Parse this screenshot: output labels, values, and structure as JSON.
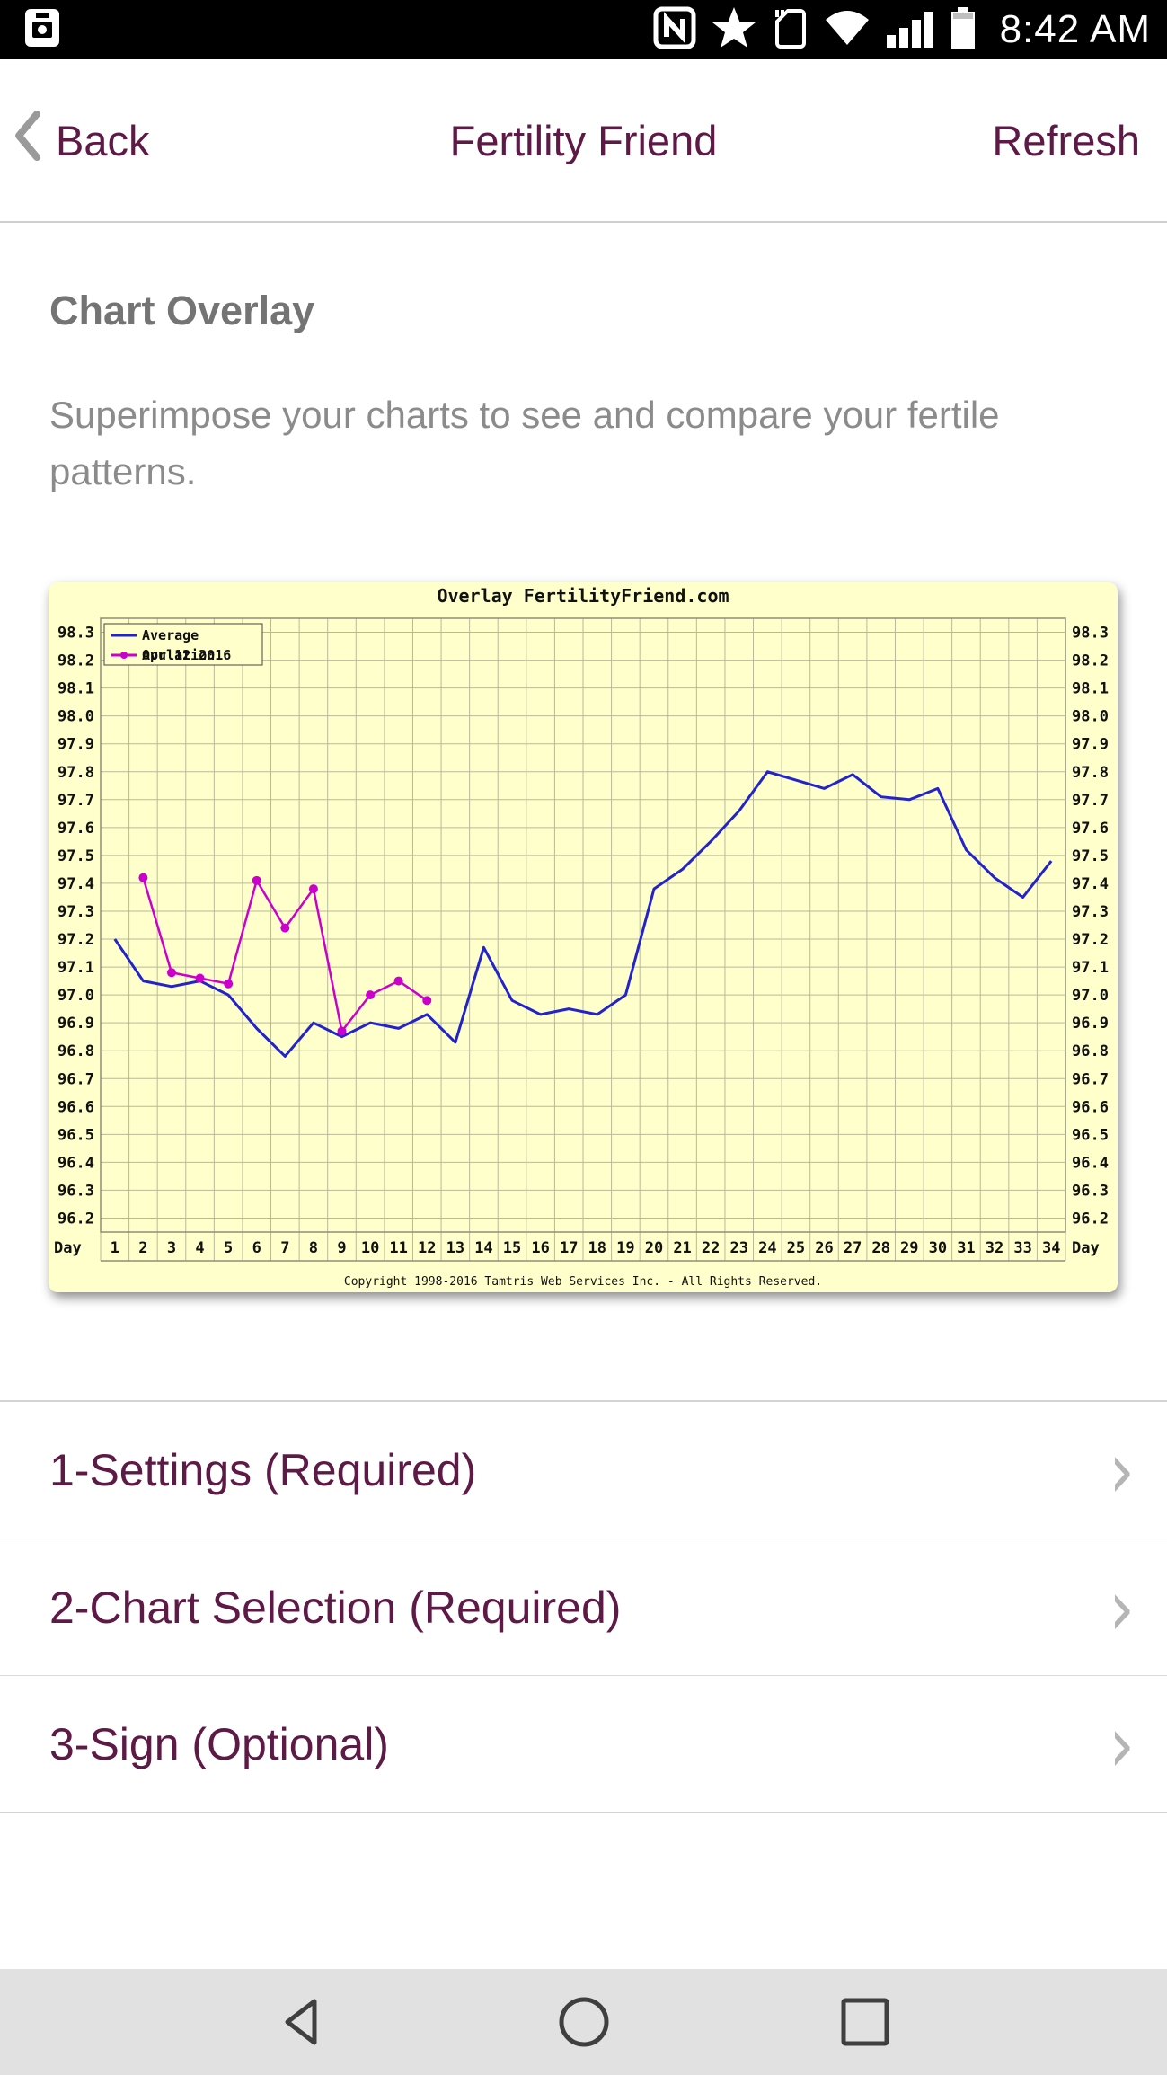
{
  "status_bar": {
    "time": "8:42 AM",
    "icons": [
      "screenshot-icon",
      "nfc-icon",
      "star-icon",
      "sim-card-icon",
      "wifi-icon",
      "signal-icon",
      "battery-icon"
    ]
  },
  "nav": {
    "back_label": "Back",
    "title": "Fertility Friend",
    "refresh_label": "Refresh"
  },
  "page": {
    "heading": "Chart Overlay",
    "description": "Superimpose your charts to see and compare your fertile patterns."
  },
  "chart_data": {
    "type": "line",
    "title": "Overlay FertilityFriend.com",
    "x_label": "Day",
    "background": "#ffffcc",
    "grid_color": "#b9b99a",
    "frame_color": "#8e8e79",
    "legend_position": "top-left",
    "ylim": [
      96.15,
      98.35
    ],
    "y_ticks": [
      "98.3",
      "98.2",
      "98.1",
      "98.0",
      "97.9",
      "97.8",
      "97.7",
      "97.6",
      "97.5",
      "97.4",
      "97.3",
      "97.2",
      "97.1",
      "97.0",
      "96.9",
      "96.8",
      "96.7",
      "96.6",
      "96.5",
      "96.4",
      "96.3",
      "96.2"
    ],
    "x": [
      1,
      2,
      3,
      4,
      5,
      6,
      7,
      8,
      9,
      10,
      11,
      12,
      13,
      14,
      15,
      16,
      17,
      18,
      19,
      20,
      21,
      22,
      23,
      24,
      25,
      26,
      27,
      28,
      29,
      30,
      31,
      32,
      33,
      34
    ],
    "series": [
      {
        "name": "Average",
        "color": "#2323cd",
        "marker": false,
        "x": [
          1,
          2,
          3,
          4,
          5,
          6,
          7,
          8,
          9,
          10,
          11,
          12,
          13,
          14,
          15,
          16,
          17,
          18,
          19,
          20,
          21,
          22,
          23,
          24,
          25,
          26,
          27,
          28,
          29,
          30,
          31,
          32,
          33,
          34
        ],
        "values": [
          97.2,
          97.05,
          97.03,
          97.05,
          97.0,
          96.88,
          96.78,
          96.9,
          96.85,
          96.9,
          96.88,
          96.93,
          96.83,
          97.17,
          96.98,
          96.93,
          96.95,
          96.93,
          97.0,
          97.38,
          97.45,
          97.55,
          97.66,
          97.8,
          97.77,
          97.74,
          97.79,
          97.71,
          97.7,
          97.74,
          97.52,
          97.42,
          97.35,
          97.48
        ]
      },
      {
        "name": "Ovulation",
        "overlay_label": "Apr 12 2016",
        "color": "#cc00cc",
        "marker": true,
        "x": [
          2,
          3,
          4,
          5,
          6,
          7,
          8,
          9,
          10,
          11,
          12
        ],
        "values": [
          97.42,
          97.08,
          97.06,
          97.04,
          97.41,
          97.24,
          97.38,
          96.87,
          97.0,
          97.05,
          96.98
        ]
      }
    ],
    "copyright": "Copyright 1998-2016 Tamtris Web Services Inc. - All Rights Reserved."
  },
  "sections": [
    {
      "label": "1-Settings (Required)"
    },
    {
      "label": "2-Chart Selection (Required)"
    },
    {
      "label": "3-Sign (Optional)"
    }
  ],
  "colors": {
    "accent": "#5e1a46",
    "heading_gray": "#747474",
    "body_gray": "#8b8b8b"
  }
}
